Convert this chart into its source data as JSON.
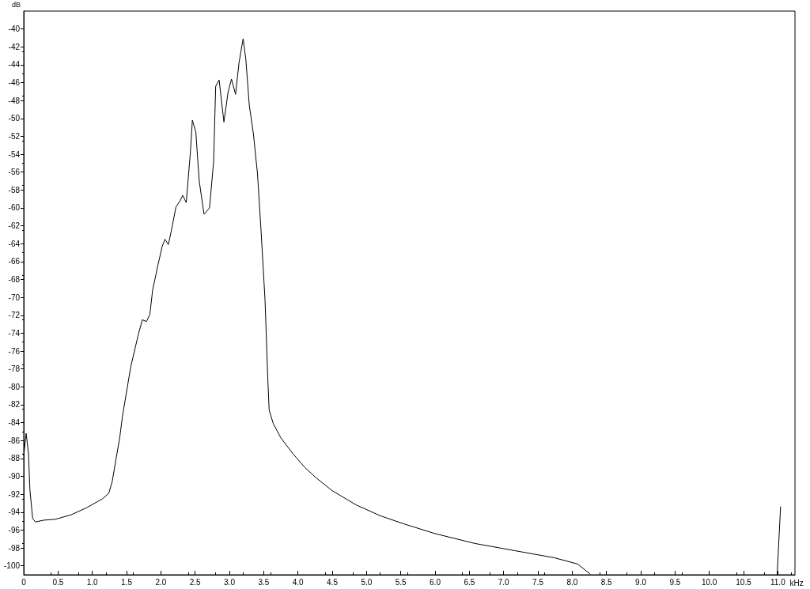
{
  "chart_data": {
    "type": "line",
    "xlabel": "kHz",
    "ylabel": "dB",
    "xlim": [
      0,
      11.25
    ],
    "ylim": [
      -101,
      -38
    ],
    "xticks": [
      0,
      {
        "value": 0.5,
        "label": "0.5"
      },
      {
        "value": 1,
        "label": "1.0"
      },
      {
        "value": 1.5,
        "label": "1.5"
      },
      {
        "value": 2,
        "label": "2.0"
      },
      {
        "value": 2.5,
        "label": "2.5"
      },
      {
        "value": 3,
        "label": "3.0"
      },
      {
        "value": 3.5,
        "label": "3.5"
      },
      {
        "value": 4,
        "label": "4.0"
      },
      {
        "value": 4.5,
        "label": "4.5"
      },
      {
        "value": 5,
        "label": "5.0"
      },
      {
        "value": 5.5,
        "label": "5.5"
      },
      {
        "value": 6,
        "label": "6.0"
      },
      {
        "value": 6.5,
        "label": "6.5"
      },
      {
        "value": 7,
        "label": "7.0"
      },
      {
        "value": 7.5,
        "label": "7.5"
      },
      {
        "value": 8,
        "label": "8.0"
      },
      {
        "value": 8.5,
        "label": "8.5"
      },
      {
        "value": 9,
        "label": "9.0"
      },
      {
        "value": 9.5,
        "label": "9.5"
      },
      {
        "value": 10,
        "label": "10.0"
      },
      {
        "value": 10.5,
        "label": "10.5"
      },
      {
        "value": 11,
        "label": "11.0"
      }
    ],
    "yticks": [
      -100,
      -98,
      -96,
      -94,
      -92,
      -90,
      -88,
      -86,
      -84,
      -82,
      -80,
      -78,
      -76,
      -74,
      -72,
      -70,
      -68,
      -66,
      -64,
      -62,
      -60,
      -58,
      -56,
      -54,
      -52,
      -50,
      -48,
      -46,
      -44,
      -42,
      -40
    ],
    "grid": false,
    "marker": "none",
    "line_style": "solid",
    "series": [
      {
        "color": "#000000",
        "x": [
          0,
          0.035,
          0.07,
          0.09,
          0.13,
          0.17,
          0.29,
          0.46,
          0.69,
          0.92,
          1.15,
          1.24,
          1.29,
          1.35,
          1.4,
          1.44,
          1.56,
          1.67,
          1.73,
          1.79,
          1.84,
          1.88,
          1.96,
          2.02,
          2.06,
          2.11,
          2.16,
          2.22,
          2.28,
          2.32,
          2.37,
          2.43,
          2.46,
          2.51,
          2.56,
          2.63,
          2.71,
          2.77,
          2.8,
          2.85,
          2.92,
          2.98,
          3.03,
          3.09,
          3.14,
          3.2,
          3.24,
          3.29,
          3.35,
          3.41,
          3.46,
          3.52,
          3.56,
          3.58,
          3.64,
          3.75,
          3.93,
          4.1,
          4.27,
          4.5,
          4.85,
          5.2,
          5.54,
          6.0,
          6.58,
          7.16,
          7.74,
          8.08,
          8.26,
          9.5,
          10.99,
          11.04
        ],
        "values": [
          -87.7,
          -85.2,
          -87.5,
          -91.5,
          -94.7,
          -95.1,
          -94.9,
          -94.8,
          -94.3,
          -93.5,
          -92.5,
          -91.9,
          -90.6,
          -87.9,
          -85.7,
          -83.3,
          -77.8,
          -74.2,
          -72.5,
          -72.7,
          -71.9,
          -69.2,
          -66.3,
          -64.3,
          -63.5,
          -64.1,
          -62.3,
          -59.9,
          -59.2,
          -58.6,
          -59.4,
          -53.9,
          -50.2,
          -51.5,
          -57.0,
          -60.7,
          -60.0,
          -54.8,
          -46.4,
          -45.7,
          -50.4,
          -47.1,
          -45.6,
          -47.3,
          -43.8,
          -41.1,
          -43.4,
          -48.5,
          -51.7,
          -56.2,
          -62.3,
          -70.3,
          -79.1,
          -82.6,
          -84.1,
          -85.7,
          -87.5,
          -89.0,
          -90.2,
          -91.6,
          -93.2,
          -94.4,
          -95.3,
          -96.4,
          -97.5,
          -98.3,
          -99.1,
          -99.8,
          -100.9,
          null,
          -101,
          -93.4
        ]
      }
    ]
  }
}
